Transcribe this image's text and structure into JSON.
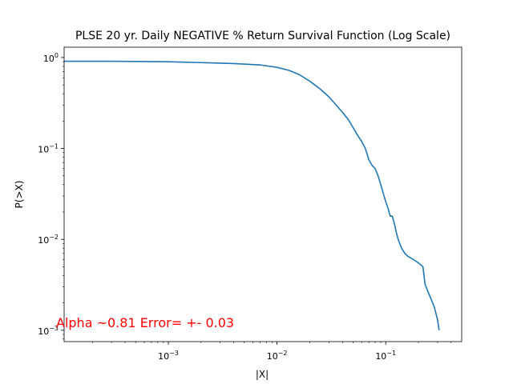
{
  "chart_data": {
    "type": "line",
    "title": "PLSE 20 yr. Daily NEGATIVE % Return Survival Function (Log Scale)",
    "xlabel": "|X|",
    "ylabel": "P(>X)",
    "xscale": "log",
    "yscale": "log",
    "xlim": [
      0.00011,
      0.5
    ],
    "ylim": [
      0.00075,
      1.3
    ],
    "x_ticks": [
      {
        "value": 0.001,
        "label": "10",
        "exp": "−3"
      },
      {
        "value": 0.01,
        "label": "10",
        "exp": "−2"
      },
      {
        "value": 0.1,
        "label": "10",
        "exp": "−1"
      }
    ],
    "y_ticks": [
      {
        "value": 0.001,
        "label": "10",
        "exp": "−3"
      },
      {
        "value": 0.01,
        "label": "10",
        "exp": "−2"
      },
      {
        "value": 0.1,
        "label": "10",
        "exp": "−1"
      },
      {
        "value": 1,
        "label": "10",
        "exp": "0"
      }
    ],
    "grid": false,
    "line_color": "#1f77b4",
    "series": [
      {
        "x": [
          0.00011,
          0.0003,
          0.001,
          0.002,
          0.004,
          0.007,
          0.01,
          0.013,
          0.016,
          0.02,
          0.025,
          0.03,
          0.035,
          0.04,
          0.045,
          0.05,
          0.055,
          0.06,
          0.065,
          0.07,
          0.075,
          0.08,
          0.085,
          0.09,
          0.095,
          0.1,
          0.105,
          0.11,
          0.115,
          0.12,
          0.125,
          0.13,
          0.14,
          0.15,
          0.16,
          0.18,
          0.2,
          0.22,
          0.23,
          0.25,
          0.28,
          0.3,
          0.31
        ],
        "y": [
          0.91,
          0.91,
          0.9,
          0.88,
          0.86,
          0.83,
          0.78,
          0.72,
          0.65,
          0.55,
          0.45,
          0.37,
          0.3,
          0.25,
          0.21,
          0.17,
          0.14,
          0.12,
          0.1,
          0.075,
          0.065,
          0.06,
          0.05,
          0.04,
          0.032,
          0.026,
          0.022,
          0.018,
          0.018,
          0.015,
          0.012,
          0.01,
          0.008,
          0.007,
          0.0065,
          0.006,
          0.0055,
          0.005,
          0.0032,
          0.0025,
          0.0018,
          0.0013,
          0.001
        ]
      }
    ],
    "annotation": "Alpha ~0.81  Error= +- 0.03",
    "annotation_color": "#ff0000"
  }
}
